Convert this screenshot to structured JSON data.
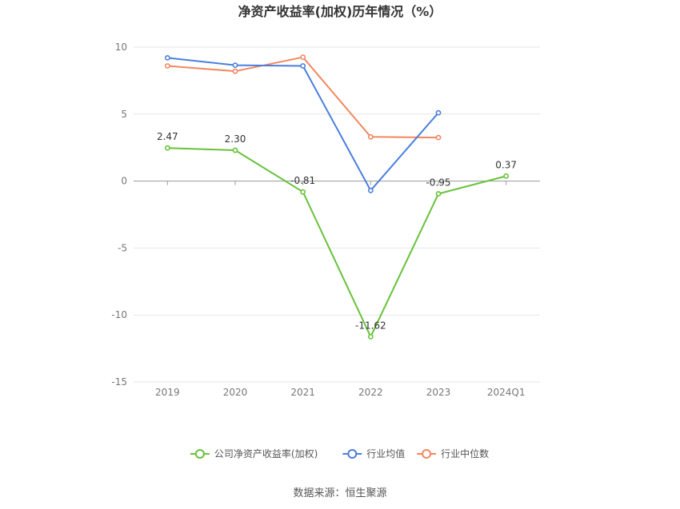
{
  "chart_data": {
    "type": "line",
    "title": "净资产收益率(加权)历年情况（%）",
    "categories": [
      "2019",
      "2020",
      "2021",
      "2022",
      "2023",
      "2024Q1"
    ],
    "ylim": [
      -15,
      10
    ],
    "yticks": [
      10,
      5,
      0,
      -5,
      -10,
      -15
    ],
    "grid": true,
    "legend_position": "bottom",
    "series": [
      {
        "name": "公司净资产收益率(加权)",
        "color": "#67c23a",
        "values": [
          2.47,
          2.3,
          -0.81,
          -11.62,
          -0.95,
          0.37
        ],
        "labels": [
          "2.47",
          "2.30",
          "-0.81",
          "-11.62",
          "-0.95",
          "0.37"
        ]
      },
      {
        "name": "行业均值",
        "color": "#4a7fdc",
        "values": [
          9.2,
          8.65,
          8.6,
          -0.7,
          5.1,
          null
        ]
      },
      {
        "name": "行业中位数",
        "color": "#f2875f",
        "values": [
          8.6,
          8.2,
          9.25,
          3.3,
          3.25,
          null
        ]
      }
    ]
  },
  "source": "数据来源：恒生聚源"
}
